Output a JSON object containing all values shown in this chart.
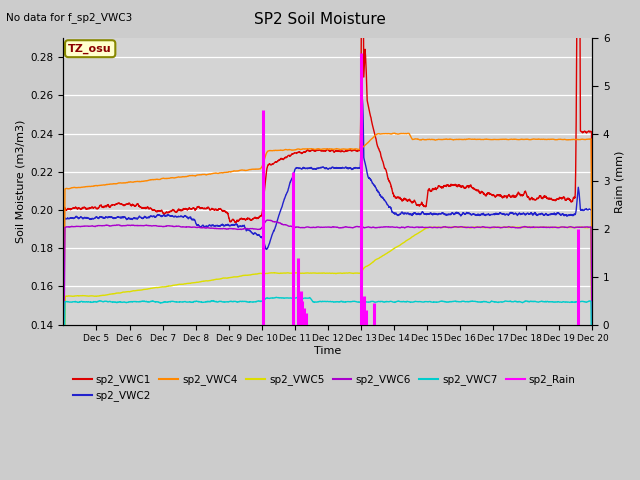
{
  "title": "SP2 Soil Moisture",
  "subtitle": "No data for f_sp2_VWC3",
  "ylabel_left": "Soil Moisture (m3/m3)",
  "ylabel_right": "Raim (mm)",
  "xlabel": "Time",
  "timezone_label": "TZ_osu",
  "ylim_left": [
    0.14,
    0.29
  ],
  "ylim_right": [
    0.0,
    6.0
  ],
  "yticks_left": [
    0.14,
    0.16,
    0.18,
    0.2,
    0.22,
    0.24,
    0.26,
    0.28
  ],
  "yticks_right": [
    0.0,
    1.0,
    2.0,
    3.0,
    4.0,
    5.0,
    6.0
  ],
  "fig_bg": "#cccccc",
  "plot_bg": "#d4d4d4",
  "line_colors": {
    "VWC1": "#dd0000",
    "VWC2": "#2222cc",
    "VWC4": "#ff8800",
    "VWC5": "#dddd00",
    "VWC6": "#aa00cc",
    "VWC7": "#00cccc",
    "Rain": "#ff00ff"
  },
  "xtick_labels": [
    "Dec 5",
    "Dec 6",
    "Dec 7",
    "Dec 8",
    "Dec 9",
    "Dec 10",
    "Dec 11",
    "Dec 12",
    "Dec 13",
    "Dec 14",
    "Dec 15",
    "Dec 16",
    "Dec 17",
    "Dec 18",
    "Dec 19",
    "Dec 20"
  ],
  "xtick_positions": [
    5,
    6,
    7,
    8,
    9,
    10,
    11,
    12,
    13,
    14,
    15,
    16,
    17,
    18,
    19,
    20
  ]
}
